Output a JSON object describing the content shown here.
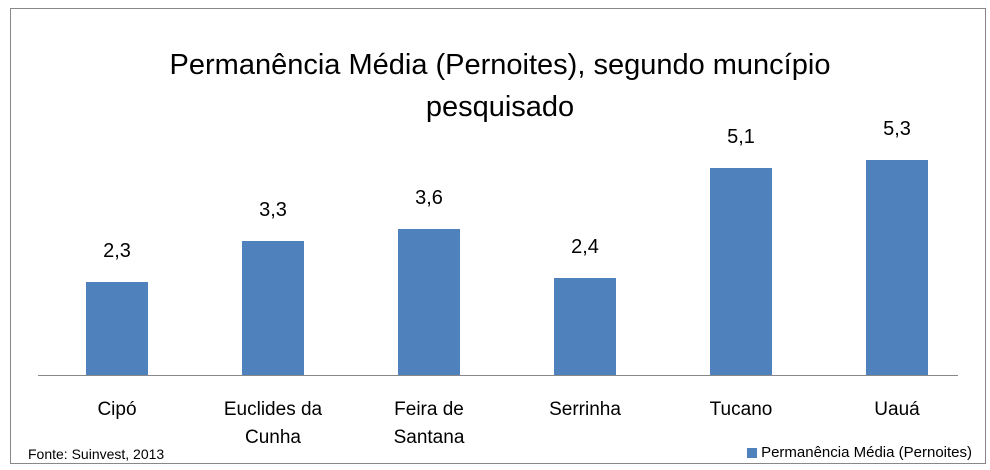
{
  "chart_data": {
    "type": "bar",
    "title": "Permanência Média (Pernoites), segundo muncípio pesquisado",
    "categories": [
      "Cipó",
      "Euclides da Cunha",
      "Feira de Santana",
      "Serrinha",
      "Tucano",
      "Uauá"
    ],
    "series": [
      {
        "name": "Permanência Média (Pernoites)",
        "color": "#4f81bd",
        "values": [
          2.3,
          3.3,
          3.6,
          2.4,
          5.1,
          5.3
        ],
        "value_labels": [
          "2,3",
          "3,3",
          "3,6",
          "2,4",
          "5,1",
          "5,3"
        ]
      }
    ],
    "legend": "bottom-right",
    "source": "Fonte: Suinvest, 2013"
  }
}
